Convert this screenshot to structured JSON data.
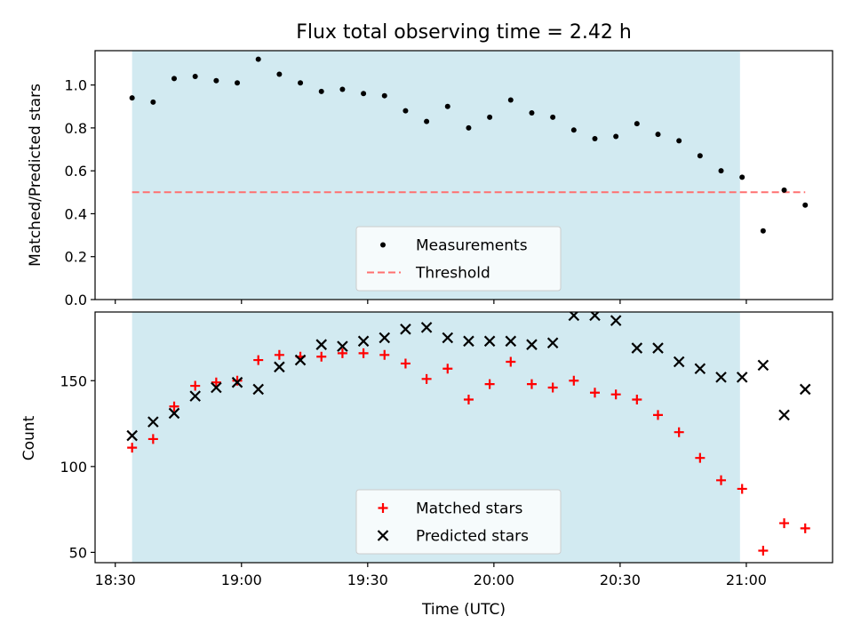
{
  "chart_data": {
    "title": "Flux total observing time = 2.42 h",
    "xlabel": "Time (UTC)",
    "x_tick_labels": [
      "18:30",
      "19:00",
      "19:30",
      "20:00",
      "20:30",
      "21:00"
    ],
    "x_tick_minutes": [
      1110,
      1140,
      1170,
      1200,
      1230,
      1260
    ],
    "xlim_minutes": [
      1105.2,
      1280.5
    ],
    "shaded_span_minutes": [
      1114.0,
      1258.5
    ],
    "shade_color": "#add8e6",
    "times_minutes": [
      1114.0,
      1119.0,
      1124.0,
      1129.0,
      1134.0,
      1139.0,
      1144.0,
      1149.0,
      1154.0,
      1159.0,
      1164.0,
      1169.0,
      1174.0,
      1179.0,
      1184.0,
      1189.0,
      1194.0,
      1199.0,
      1204.0,
      1209.0,
      1214.0,
      1219.0,
      1224.0,
      1229.0,
      1234.0,
      1239.0,
      1244.0,
      1249.0,
      1254.0,
      1259.0,
      1264.0,
      1269.0,
      1274.0
    ],
    "panels": [
      {
        "type": "scatter",
        "ylabel": "Matched/Predicted stars",
        "ylim": [
          0,
          1.16
        ],
        "y_ticks": [
          "0.0",
          "0.2",
          "0.4",
          "0.6",
          "0.8",
          "1.0"
        ],
        "series": [
          {
            "name": "Measurements",
            "marker": "dot",
            "color": "#000000",
            "values": [
              0.94,
              0.92,
              1.03,
              1.04,
              1.02,
              1.01,
              1.12,
              1.05,
              1.01,
              0.97,
              0.98,
              0.96,
              0.95,
              0.88,
              0.83,
              0.9,
              0.8,
              0.85,
              0.93,
              0.87,
              0.85,
              0.79,
              0.75,
              0.76,
              0.82,
              0.77,
              0.74,
              0.67,
              0.6,
              0.57,
              0.32,
              0.51,
              0.44
            ]
          }
        ],
        "threshold": {
          "name": "Threshold",
          "value": 0.5,
          "color": "#ff7070",
          "x_range_minutes": [
            1114.0,
            1274.0
          ]
        },
        "legend_position": "lower-center"
      },
      {
        "type": "scatter",
        "ylabel": "Count",
        "ylim": [
          44,
          190
        ],
        "y_ticks": [
          "50",
          "100",
          "150"
        ],
        "series": [
          {
            "name": "Matched stars",
            "marker": "plus",
            "color": "#ff0000",
            "values": [
              111,
              116,
              135,
              147,
              149,
              150,
              162,
              165,
              164,
              164,
              166,
              166,
              165,
              160,
              151,
              157,
              139,
              148,
              161,
              148,
              146,
              150,
              143,
              142,
              139,
              130,
              120,
              105,
              92,
              87,
              51,
              67,
              64
            ]
          },
          {
            "name": "Predicted stars",
            "marker": "x",
            "color": "#000000",
            "values": [
              118,
              126,
              131,
              141,
              146,
              149,
              145,
              158,
              162,
              171,
              170,
              173,
              175,
              180,
              181,
              175,
              173,
              173,
              173,
              171,
              172,
              188,
              188,
              185,
              169,
              169,
              161,
              157,
              152,
              152,
              159,
              130,
              145
            ]
          }
        ],
        "legend_position": "lower-center"
      }
    ]
  }
}
